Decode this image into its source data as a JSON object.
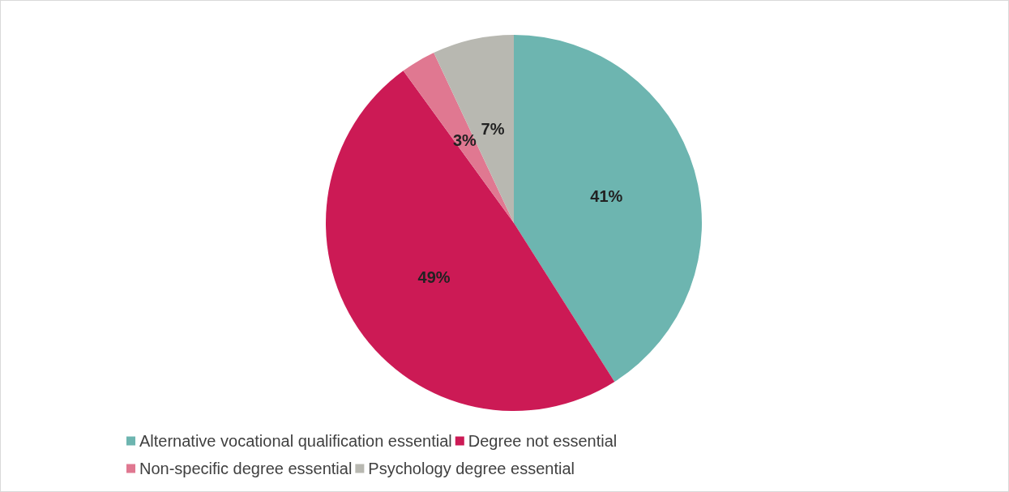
{
  "chart_data": {
    "type": "pie",
    "categories": [
      "Alternative vocational qualification essential",
      "Degree not essential",
      "Non-specific degree essential",
      "Psychology degree essential"
    ],
    "values": [
      41,
      49,
      3,
      7
    ],
    "value_labels": [
      "41%",
      "49%",
      "3%",
      "7%"
    ],
    "colors": [
      "#6db5b0",
      "#cc1a55",
      "#e07891",
      "#b8b8b1"
    ],
    "legend": "bottom"
  }
}
